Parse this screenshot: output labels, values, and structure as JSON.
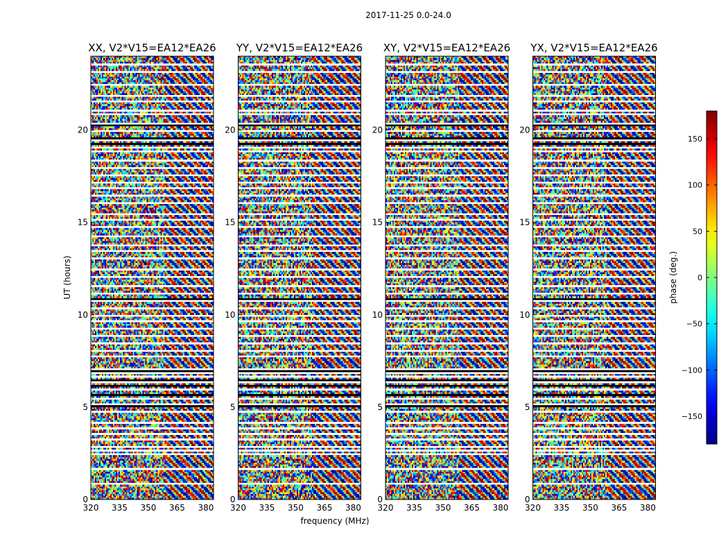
{
  "figure_title": "2017-11-25 0.0-24.0",
  "chart_data": {
    "type": "heatmap",
    "ylabel": "UT (hours)",
    "xlabel": "frequency (MHz)",
    "xlim": [
      320,
      384
    ],
    "ylim": [
      0,
      24
    ],
    "xticks": [
      320,
      335,
      350,
      365,
      380
    ],
    "yticks": [
      0,
      5,
      10,
      15,
      20
    ],
    "value_description": "visibility phase per time/frequency cell (noise-like, with flagged white rows)",
    "panels": [
      {
        "title": "XX, V2*V15=EA12*EA26"
      },
      {
        "title": "YY, V2*V15=EA12*EA26"
      },
      {
        "title": "XY, V2*V15=EA12*EA26"
      },
      {
        "title": "YX, V2*V15=EA12*EA26"
      }
    ],
    "colorbar": {
      "label": "phase (deg.)",
      "range": [
        -180,
        180
      ],
      "ticks": [
        150,
        100,
        50,
        0,
        -50,
        -100,
        -150
      ],
      "tick_labels": [
        "150",
        "100",
        "50",
        "0",
        "−50",
        "−100",
        "−150"
      ],
      "colormap": "jet"
    },
    "flagged_ut_hours": [
      0.9,
      1.75,
      2.55,
      2.75,
      2.95,
      3.3,
      3.6,
      3.95,
      4.2,
      4.85,
      5.2,
      5.55,
      6.05,
      6.45,
      6.75,
      6.9,
      7.15,
      7.75,
      8.1,
      8.55,
      8.95,
      9.35,
      9.75,
      10.05,
      10.45,
      10.85,
      11.25,
      11.6,
      12.1,
      12.55,
      13.05,
      13.55,
      13.8,
      14.35,
      14.75,
      15.25,
      15.55,
      16.05,
      16.5,
      16.9,
      17.25,
      17.65,
      18.0,
      18.4,
      18.9,
      19.15,
      19.55,
      20.0,
      20.45,
      20.9,
      21.1,
      21.6,
      21.85,
      22.55,
      23.2,
      23.55
    ],
    "black_ut_hours": [
      5.1,
      5.7,
      6.2,
      6.5,
      7.0,
      10.75,
      10.95,
      19.3,
      19.65,
      20.3
    ]
  }
}
